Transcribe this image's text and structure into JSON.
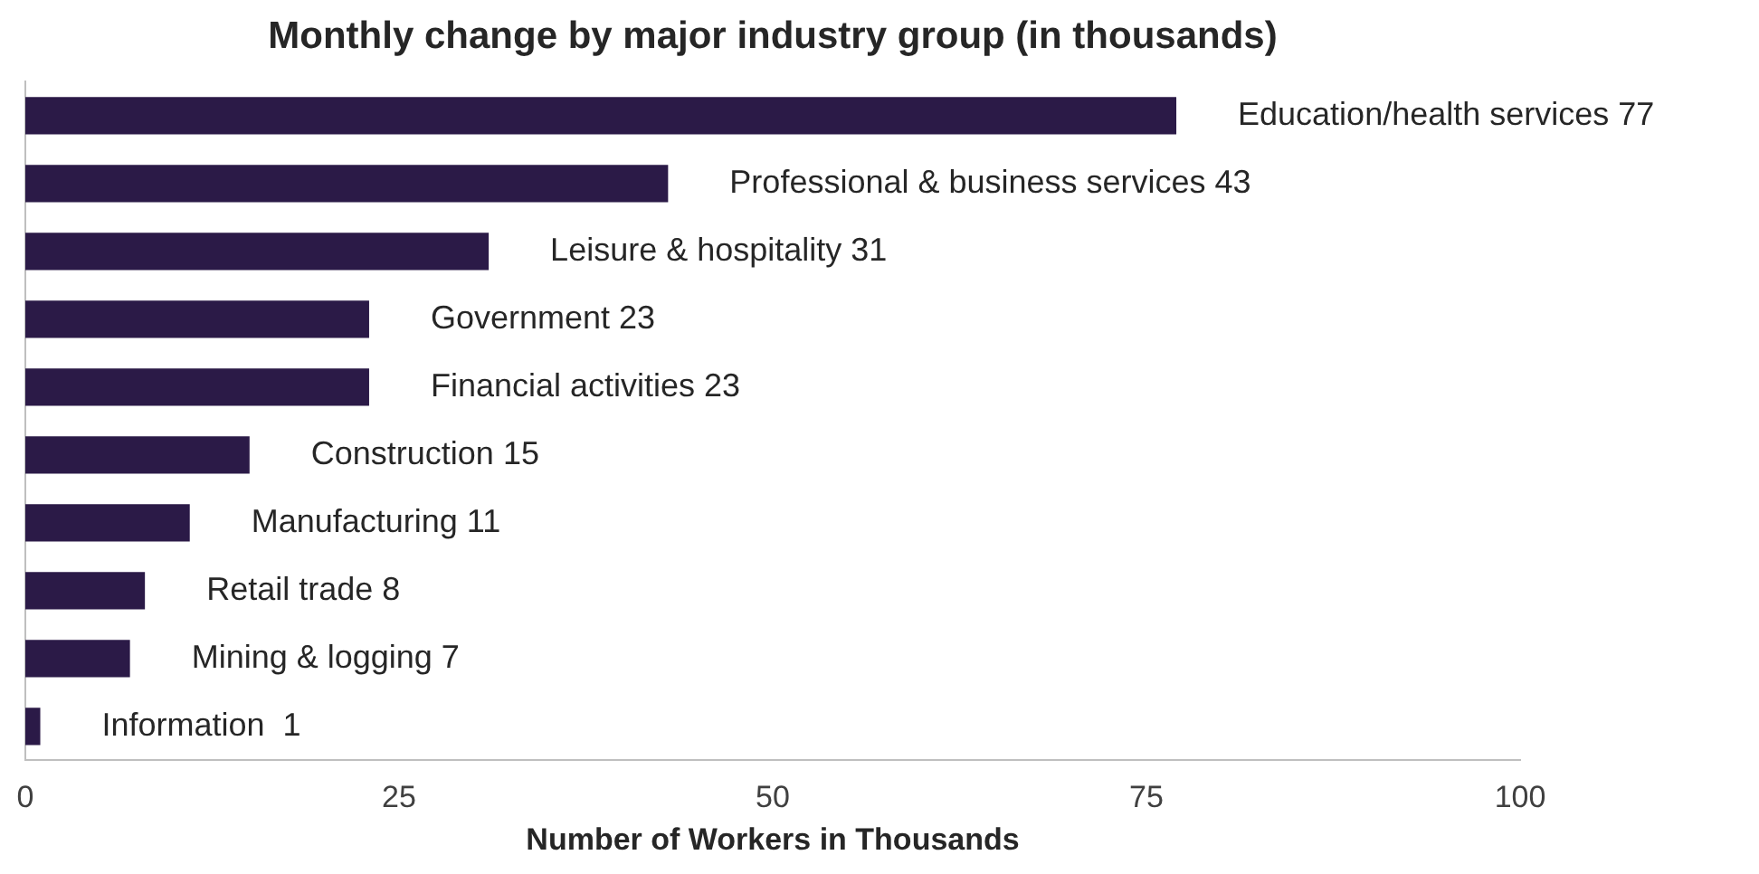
{
  "chart_data": {
    "type": "bar",
    "orientation": "horizontal",
    "title": "Monthly change by major industry group (in thousands)",
    "xlabel": "Number of Workers in Thousands",
    "categories": [
      "Education/health services 77",
      "Professional & business services 43",
      "Leisure & hospitality 31",
      "Government 23",
      "Financial activities 23",
      "Construction 15",
      "Manufacturing 11",
      "Retail trade 8",
      "Mining & logging 7",
      "Information  1"
    ],
    "values": [
      77,
      43,
      31,
      23,
      23,
      15,
      11,
      8,
      7,
      1
    ],
    "color": "#2b1a47",
    "xlim": [
      0,
      100
    ],
    "xticks": [
      0,
      25,
      50,
      75,
      100
    ],
    "grid": false,
    "legend": false,
    "tick_labels": "x"
  }
}
